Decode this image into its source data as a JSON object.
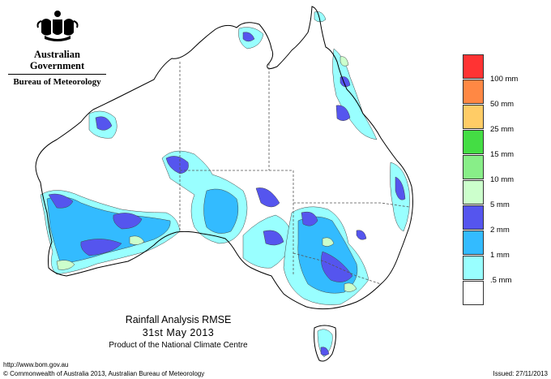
{
  "header": {
    "government": "Australian Government",
    "bureau": "Bureau of Meteorology",
    "crest_icon": "coat-of-arms-icon"
  },
  "map": {
    "title": "Rainfall Analysis RMSE",
    "date": "31st  May  2013",
    "product": "Product of the National Climate Centre",
    "colors": {
      "land": "#ffffff",
      "coast": "#000000",
      "border": "#555555"
    }
  },
  "legend": {
    "items": [
      {
        "label": "100 mm",
        "color": "#ff3333"
      },
      {
        "label": "50 mm",
        "color": "#ff8844"
      },
      {
        "label": "25 mm",
        "color": "#ffcc66"
      },
      {
        "label": "15 mm",
        "color": "#44dd44"
      },
      {
        "label": "10 mm",
        "color": "#88ee88"
      },
      {
        "label": "5 mm",
        "color": "#ccffcc"
      },
      {
        "label": "2 mm",
        "color": "#5555ee"
      },
      {
        "label": "1 mm",
        "color": "#33bbff"
      },
      {
        "label": ".5 mm",
        "color": "#99ffff"
      },
      {
        "label": "",
        "color": "#ffffff"
      }
    ]
  },
  "footer": {
    "url": "http://www.bom.gov.au",
    "copyright": "© Commonwealth of Australia 2013, Australian Bureau of Meteorology",
    "issued": "Issued: 27/11/2013"
  }
}
